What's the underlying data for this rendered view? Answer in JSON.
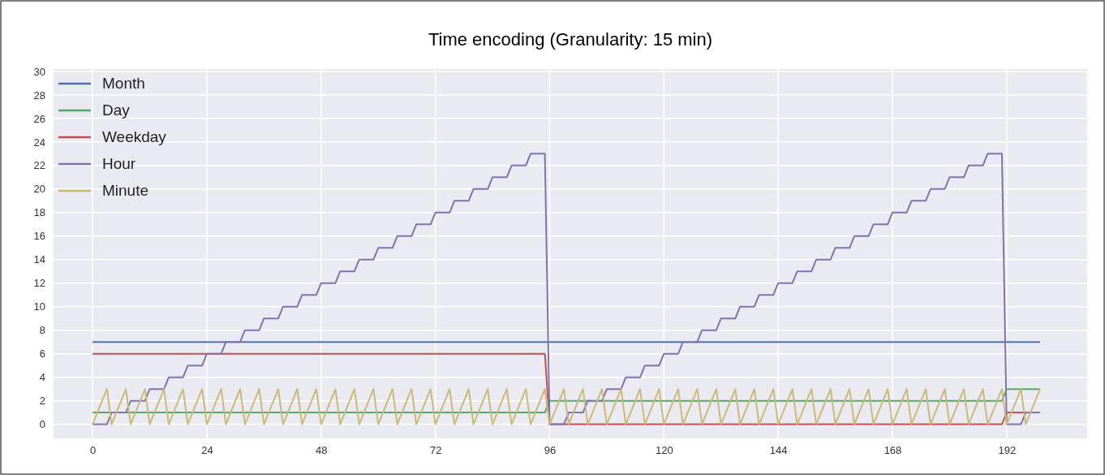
{
  "chart_data": {
    "type": "line",
    "title": "Time encoding (Granularity: 15 min)",
    "x": [
      0,
      1,
      2,
      3,
      4,
      5,
      6,
      7,
      8,
      9,
      10,
      11,
      12,
      13,
      14,
      15,
      16,
      17,
      18,
      19,
      20,
      21,
      22,
      23,
      24,
      25,
      26,
      27,
      28,
      29,
      30,
      31,
      32,
      33,
      34,
      35,
      36,
      37,
      38,
      39,
      40,
      41,
      42,
      43,
      44,
      45,
      46,
      47,
      48,
      49,
      50,
      51,
      52,
      53,
      54,
      55,
      56,
      57,
      58,
      59,
      60,
      61,
      62,
      63,
      64,
      65,
      66,
      67,
      68,
      69,
      70,
      71,
      72,
      73,
      74,
      75,
      76,
      77,
      78,
      79,
      80,
      81,
      82,
      83,
      84,
      85,
      86,
      87,
      88,
      89,
      90,
      91,
      92,
      93,
      94,
      95,
      96,
      97,
      98,
      99,
      100,
      101,
      102,
      103,
      104,
      105,
      106,
      107,
      108,
      109,
      110,
      111,
      112,
      113,
      114,
      115,
      116,
      117,
      118,
      119,
      120,
      121,
      122,
      123,
      124,
      125,
      126,
      127,
      128,
      129,
      130,
      131,
      132,
      133,
      134,
      135,
      136,
      137,
      138,
      139,
      140,
      141,
      142,
      143,
      144,
      145,
      146,
      147,
      148,
      149,
      150,
      151,
      152,
      153,
      154,
      155,
      156,
      157,
      158,
      159,
      160,
      161,
      162,
      163,
      164,
      165,
      166,
      167,
      168,
      169,
      170,
      171,
      172,
      173,
      174,
      175,
      176,
      177,
      178,
      179,
      180,
      181,
      182,
      183,
      184,
      185,
      186,
      187,
      188,
      189,
      190,
      191,
      192,
      193,
      194,
      195,
      196,
      197,
      198,
      199
    ],
    "series": [
      {
        "name": "Month",
        "color": "#4c72b0",
        "values": [
          7,
          7,
          7,
          7,
          7,
          7,
          7,
          7,
          7,
          7,
          7,
          7,
          7,
          7,
          7,
          7,
          7,
          7,
          7,
          7,
          7,
          7,
          7,
          7,
          7,
          7,
          7,
          7,
          7,
          7,
          7,
          7,
          7,
          7,
          7,
          7,
          7,
          7,
          7,
          7,
          7,
          7,
          7,
          7,
          7,
          7,
          7,
          7,
          7,
          7,
          7,
          7,
          7,
          7,
          7,
          7,
          7,
          7,
          7,
          7,
          7,
          7,
          7,
          7,
          7,
          7,
          7,
          7,
          7,
          7,
          7,
          7,
          7,
          7,
          7,
          7,
          7,
          7,
          7,
          7,
          7,
          7,
          7,
          7,
          7,
          7,
          7,
          7,
          7,
          7,
          7,
          7,
          7,
          7,
          7,
          7,
          7,
          7,
          7,
          7,
          7,
          7,
          7,
          7,
          7,
          7,
          7,
          7,
          7,
          7,
          7,
          7,
          7,
          7,
          7,
          7,
          7,
          7,
          7,
          7,
          7,
          7,
          7,
          7,
          7,
          7,
          7,
          7,
          7,
          7,
          7,
          7,
          7,
          7,
          7,
          7,
          7,
          7,
          7,
          7,
          7,
          7,
          7,
          7,
          7,
          7,
          7,
          7,
          7,
          7,
          7,
          7,
          7,
          7,
          7,
          7,
          7,
          7,
          7,
          7,
          7,
          7,
          7,
          7,
          7,
          7,
          7,
          7,
          7,
          7,
          7,
          7,
          7,
          7,
          7,
          7,
          7,
          7,
          7,
          7,
          7,
          7,
          7,
          7,
          7,
          7,
          7,
          7,
          7,
          7,
          7,
          7,
          7,
          7,
          7,
          7,
          7,
          7,
          7,
          7
        ]
      },
      {
        "name": "Day",
        "color": "#55a868",
        "values": [
          1,
          1,
          1,
          1,
          1,
          1,
          1,
          1,
          1,
          1,
          1,
          1,
          1,
          1,
          1,
          1,
          1,
          1,
          1,
          1,
          1,
          1,
          1,
          1,
          1,
          1,
          1,
          1,
          1,
          1,
          1,
          1,
          1,
          1,
          1,
          1,
          1,
          1,
          1,
          1,
          1,
          1,
          1,
          1,
          1,
          1,
          1,
          1,
          1,
          1,
          1,
          1,
          1,
          1,
          1,
          1,
          1,
          1,
          1,
          1,
          1,
          1,
          1,
          1,
          1,
          1,
          1,
          1,
          1,
          1,
          1,
          1,
          1,
          1,
          1,
          1,
          1,
          1,
          1,
          1,
          1,
          1,
          1,
          1,
          1,
          1,
          1,
          1,
          1,
          1,
          1,
          1,
          1,
          1,
          1,
          1,
          2,
          2,
          2,
          2,
          2,
          2,
          2,
          2,
          2,
          2,
          2,
          2,
          2,
          2,
          2,
          2,
          2,
          2,
          2,
          2,
          2,
          2,
          2,
          2,
          2,
          2,
          2,
          2,
          2,
          2,
          2,
          2,
          2,
          2,
          2,
          2,
          2,
          2,
          2,
          2,
          2,
          2,
          2,
          2,
          2,
          2,
          2,
          2,
          2,
          2,
          2,
          2,
          2,
          2,
          2,
          2,
          2,
          2,
          2,
          2,
          2,
          2,
          2,
          2,
          2,
          2,
          2,
          2,
          2,
          2,
          2,
          2,
          2,
          2,
          2,
          2,
          2,
          2,
          2,
          2,
          2,
          2,
          2,
          2,
          2,
          2,
          2,
          2,
          2,
          2,
          2,
          2,
          2,
          2,
          2,
          2,
          3,
          3,
          3,
          3,
          3,
          3,
          3,
          3
        ]
      },
      {
        "name": "Weekday",
        "color": "#c44e52",
        "values": [
          6,
          6,
          6,
          6,
          6,
          6,
          6,
          6,
          6,
          6,
          6,
          6,
          6,
          6,
          6,
          6,
          6,
          6,
          6,
          6,
          6,
          6,
          6,
          6,
          6,
          6,
          6,
          6,
          6,
          6,
          6,
          6,
          6,
          6,
          6,
          6,
          6,
          6,
          6,
          6,
          6,
          6,
          6,
          6,
          6,
          6,
          6,
          6,
          6,
          6,
          6,
          6,
          6,
          6,
          6,
          6,
          6,
          6,
          6,
          6,
          6,
          6,
          6,
          6,
          6,
          6,
          6,
          6,
          6,
          6,
          6,
          6,
          6,
          6,
          6,
          6,
          6,
          6,
          6,
          6,
          6,
          6,
          6,
          6,
          6,
          6,
          6,
          6,
          6,
          6,
          6,
          6,
          6,
          6,
          6,
          6,
          0,
          0,
          0,
          0,
          0,
          0,
          0,
          0,
          0,
          0,
          0,
          0,
          0,
          0,
          0,
          0,
          0,
          0,
          0,
          0,
          0,
          0,
          0,
          0,
          0,
          0,
          0,
          0,
          0,
          0,
          0,
          0,
          0,
          0,
          0,
          0,
          0,
          0,
          0,
          0,
          0,
          0,
          0,
          0,
          0,
          0,
          0,
          0,
          0,
          0,
          0,
          0,
          0,
          0,
          0,
          0,
          0,
          0,
          0,
          0,
          0,
          0,
          0,
          0,
          0,
          0,
          0,
          0,
          0,
          0,
          0,
          0,
          0,
          0,
          0,
          0,
          0,
          0,
          0,
          0,
          0,
          0,
          0,
          0,
          0,
          0,
          0,
          0,
          0,
          0,
          0,
          0,
          0,
          0,
          0,
          0,
          1,
          1,
          1,
          1,
          1,
          1,
          null,
          null
        ]
      },
      {
        "name": "Hour",
        "color": "#8172b2",
        "values": [
          0,
          0,
          0,
          0,
          1,
          1,
          1,
          1,
          2,
          2,
          2,
          2,
          3,
          3,
          3,
          3,
          4,
          4,
          4,
          4,
          5,
          5,
          5,
          5,
          6,
          6,
          6,
          6,
          7,
          7,
          7,
          7,
          8,
          8,
          8,
          8,
          9,
          9,
          9,
          9,
          10,
          10,
          10,
          10,
          11,
          11,
          11,
          11,
          12,
          12,
          12,
          12,
          13,
          13,
          13,
          13,
          14,
          14,
          14,
          14,
          15,
          15,
          15,
          15,
          16,
          16,
          16,
          16,
          17,
          17,
          17,
          17,
          18,
          18,
          18,
          18,
          19,
          19,
          19,
          19,
          20,
          20,
          20,
          20,
          21,
          21,
          21,
          21,
          22,
          22,
          22,
          22,
          23,
          23,
          23,
          23,
          0,
          0,
          0,
          0,
          1,
          1,
          1,
          1,
          2,
          2,
          2,
          2,
          3,
          3,
          3,
          3,
          4,
          4,
          4,
          4,
          5,
          5,
          5,
          5,
          6,
          6,
          6,
          6,
          7,
          7,
          7,
          7,
          8,
          8,
          8,
          8,
          9,
          9,
          9,
          9,
          10,
          10,
          10,
          10,
          11,
          11,
          11,
          11,
          12,
          12,
          12,
          12,
          13,
          13,
          13,
          13,
          14,
          14,
          14,
          14,
          15,
          15,
          15,
          15,
          16,
          16,
          16,
          16,
          17,
          17,
          17,
          17,
          18,
          18,
          18,
          18,
          19,
          19,
          19,
          19,
          20,
          20,
          20,
          20,
          21,
          21,
          21,
          21,
          22,
          22,
          22,
          22,
          23,
          23,
          23,
          23,
          0,
          0,
          0,
          0,
          1,
          1,
          1,
          1
        ]
      },
      {
        "name": "Minute",
        "color": "#ccb974",
        "values": [
          0,
          1,
          2,
          3,
          0,
          1,
          2,
          3,
          0,
          1,
          2,
          3,
          0,
          1,
          2,
          3,
          0,
          1,
          2,
          3,
          0,
          1,
          2,
          3,
          0,
          1,
          2,
          3,
          0,
          1,
          2,
          3,
          0,
          1,
          2,
          3,
          0,
          1,
          2,
          3,
          0,
          1,
          2,
          3,
          0,
          1,
          2,
          3,
          0,
          1,
          2,
          3,
          0,
          1,
          2,
          3,
          0,
          1,
          2,
          3,
          0,
          1,
          2,
          3,
          0,
          1,
          2,
          3,
          0,
          1,
          2,
          3,
          0,
          1,
          2,
          3,
          0,
          1,
          2,
          3,
          0,
          1,
          2,
          3,
          0,
          1,
          2,
          3,
          0,
          1,
          2,
          3,
          0,
          1,
          2,
          3,
          0,
          1,
          2,
          3,
          0,
          1,
          2,
          3,
          0,
          1,
          2,
          3,
          0,
          1,
          2,
          3,
          0,
          1,
          2,
          3,
          0,
          1,
          2,
          3,
          0,
          1,
          2,
          3,
          0,
          1,
          2,
          3,
          0,
          1,
          2,
          3,
          0,
          1,
          2,
          3,
          0,
          1,
          2,
          3,
          0,
          1,
          2,
          3,
          0,
          1,
          2,
          3,
          0,
          1,
          2,
          3,
          0,
          1,
          2,
          3,
          0,
          1,
          2,
          3,
          0,
          1,
          2,
          3,
          0,
          1,
          2,
          3,
          0,
          1,
          2,
          3,
          0,
          1,
          2,
          3,
          0,
          1,
          2,
          3,
          0,
          1,
          2,
          3,
          0,
          1,
          2,
          3,
          0,
          1,
          2,
          3,
          0,
          1,
          2,
          3,
          0,
          1,
          2,
          3
        ]
      }
    ],
    "xlim": [
      -8.2,
      208.9
    ],
    "xticks": [
      0,
      24,
      48,
      72,
      96,
      120,
      144,
      168,
      192
    ],
    "ylim": [
      -1.2,
      30.2
    ],
    "yticks": [
      0,
      2,
      4,
      6,
      8,
      10,
      12,
      14,
      16,
      18,
      20,
      22,
      24,
      26,
      28,
      30
    ],
    "grid": true,
    "legend": "top left",
    "line_style": "solid",
    "marker": "none"
  }
}
